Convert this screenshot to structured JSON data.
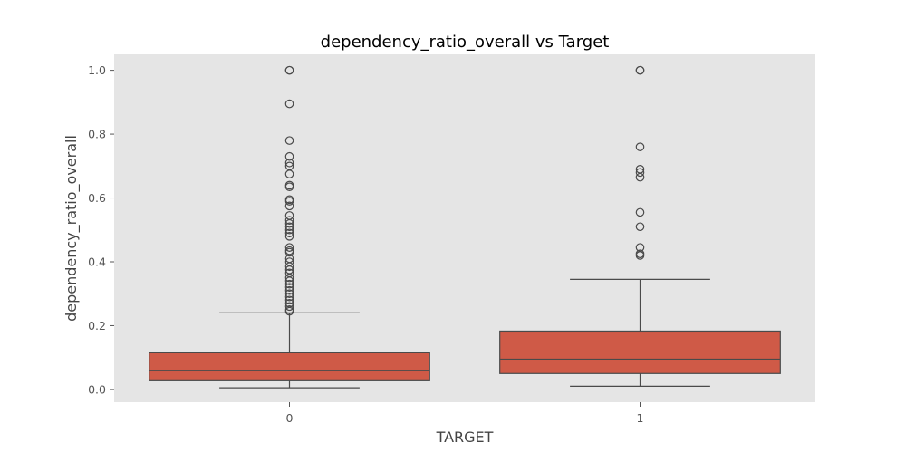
{
  "chart_data": {
    "type": "box",
    "title": "dependency_ratio_overall vs Target",
    "xlabel": "TARGET",
    "ylabel": "dependency_ratio_overall",
    "ylim": [
      -0.04,
      1.05
    ],
    "yticks": [
      "0.0",
      "0.2",
      "0.4",
      "0.6",
      "0.8",
      "1.0"
    ],
    "grid": false,
    "colors": {
      "background": "#e5e5e5",
      "box_fill": "#cf5a47",
      "line": "#4a4a4a"
    },
    "categories": [
      "0",
      "1"
    ],
    "boxes": [
      {
        "category": "0",
        "whisker_low": 0.005,
        "q1": 0.03,
        "median": 0.06,
        "q3": 0.115,
        "whisker_high": 0.24,
        "outliers": [
          1.0,
          1.0,
          0.895,
          0.78,
          0.73,
          0.71,
          0.7,
          0.675,
          0.64,
          0.635,
          0.595,
          0.59,
          0.575,
          0.545,
          0.53,
          0.52,
          0.51,
          0.5,
          0.49,
          0.48,
          0.445,
          0.435,
          0.43,
          0.41,
          0.4,
          0.385,
          0.375,
          0.365,
          0.35,
          0.34,
          0.33,
          0.32,
          0.31,
          0.3,
          0.29,
          0.28,
          0.27,
          0.26,
          0.25,
          0.245
        ]
      },
      {
        "category": "1",
        "whisker_low": 0.01,
        "q1": 0.05,
        "median": 0.095,
        "q3": 0.183,
        "whisker_high": 0.345,
        "outliers": [
          1.0,
          1.0,
          0.76,
          0.69,
          0.68,
          0.665,
          0.555,
          0.51,
          0.445,
          0.425,
          0.42
        ]
      }
    ]
  }
}
